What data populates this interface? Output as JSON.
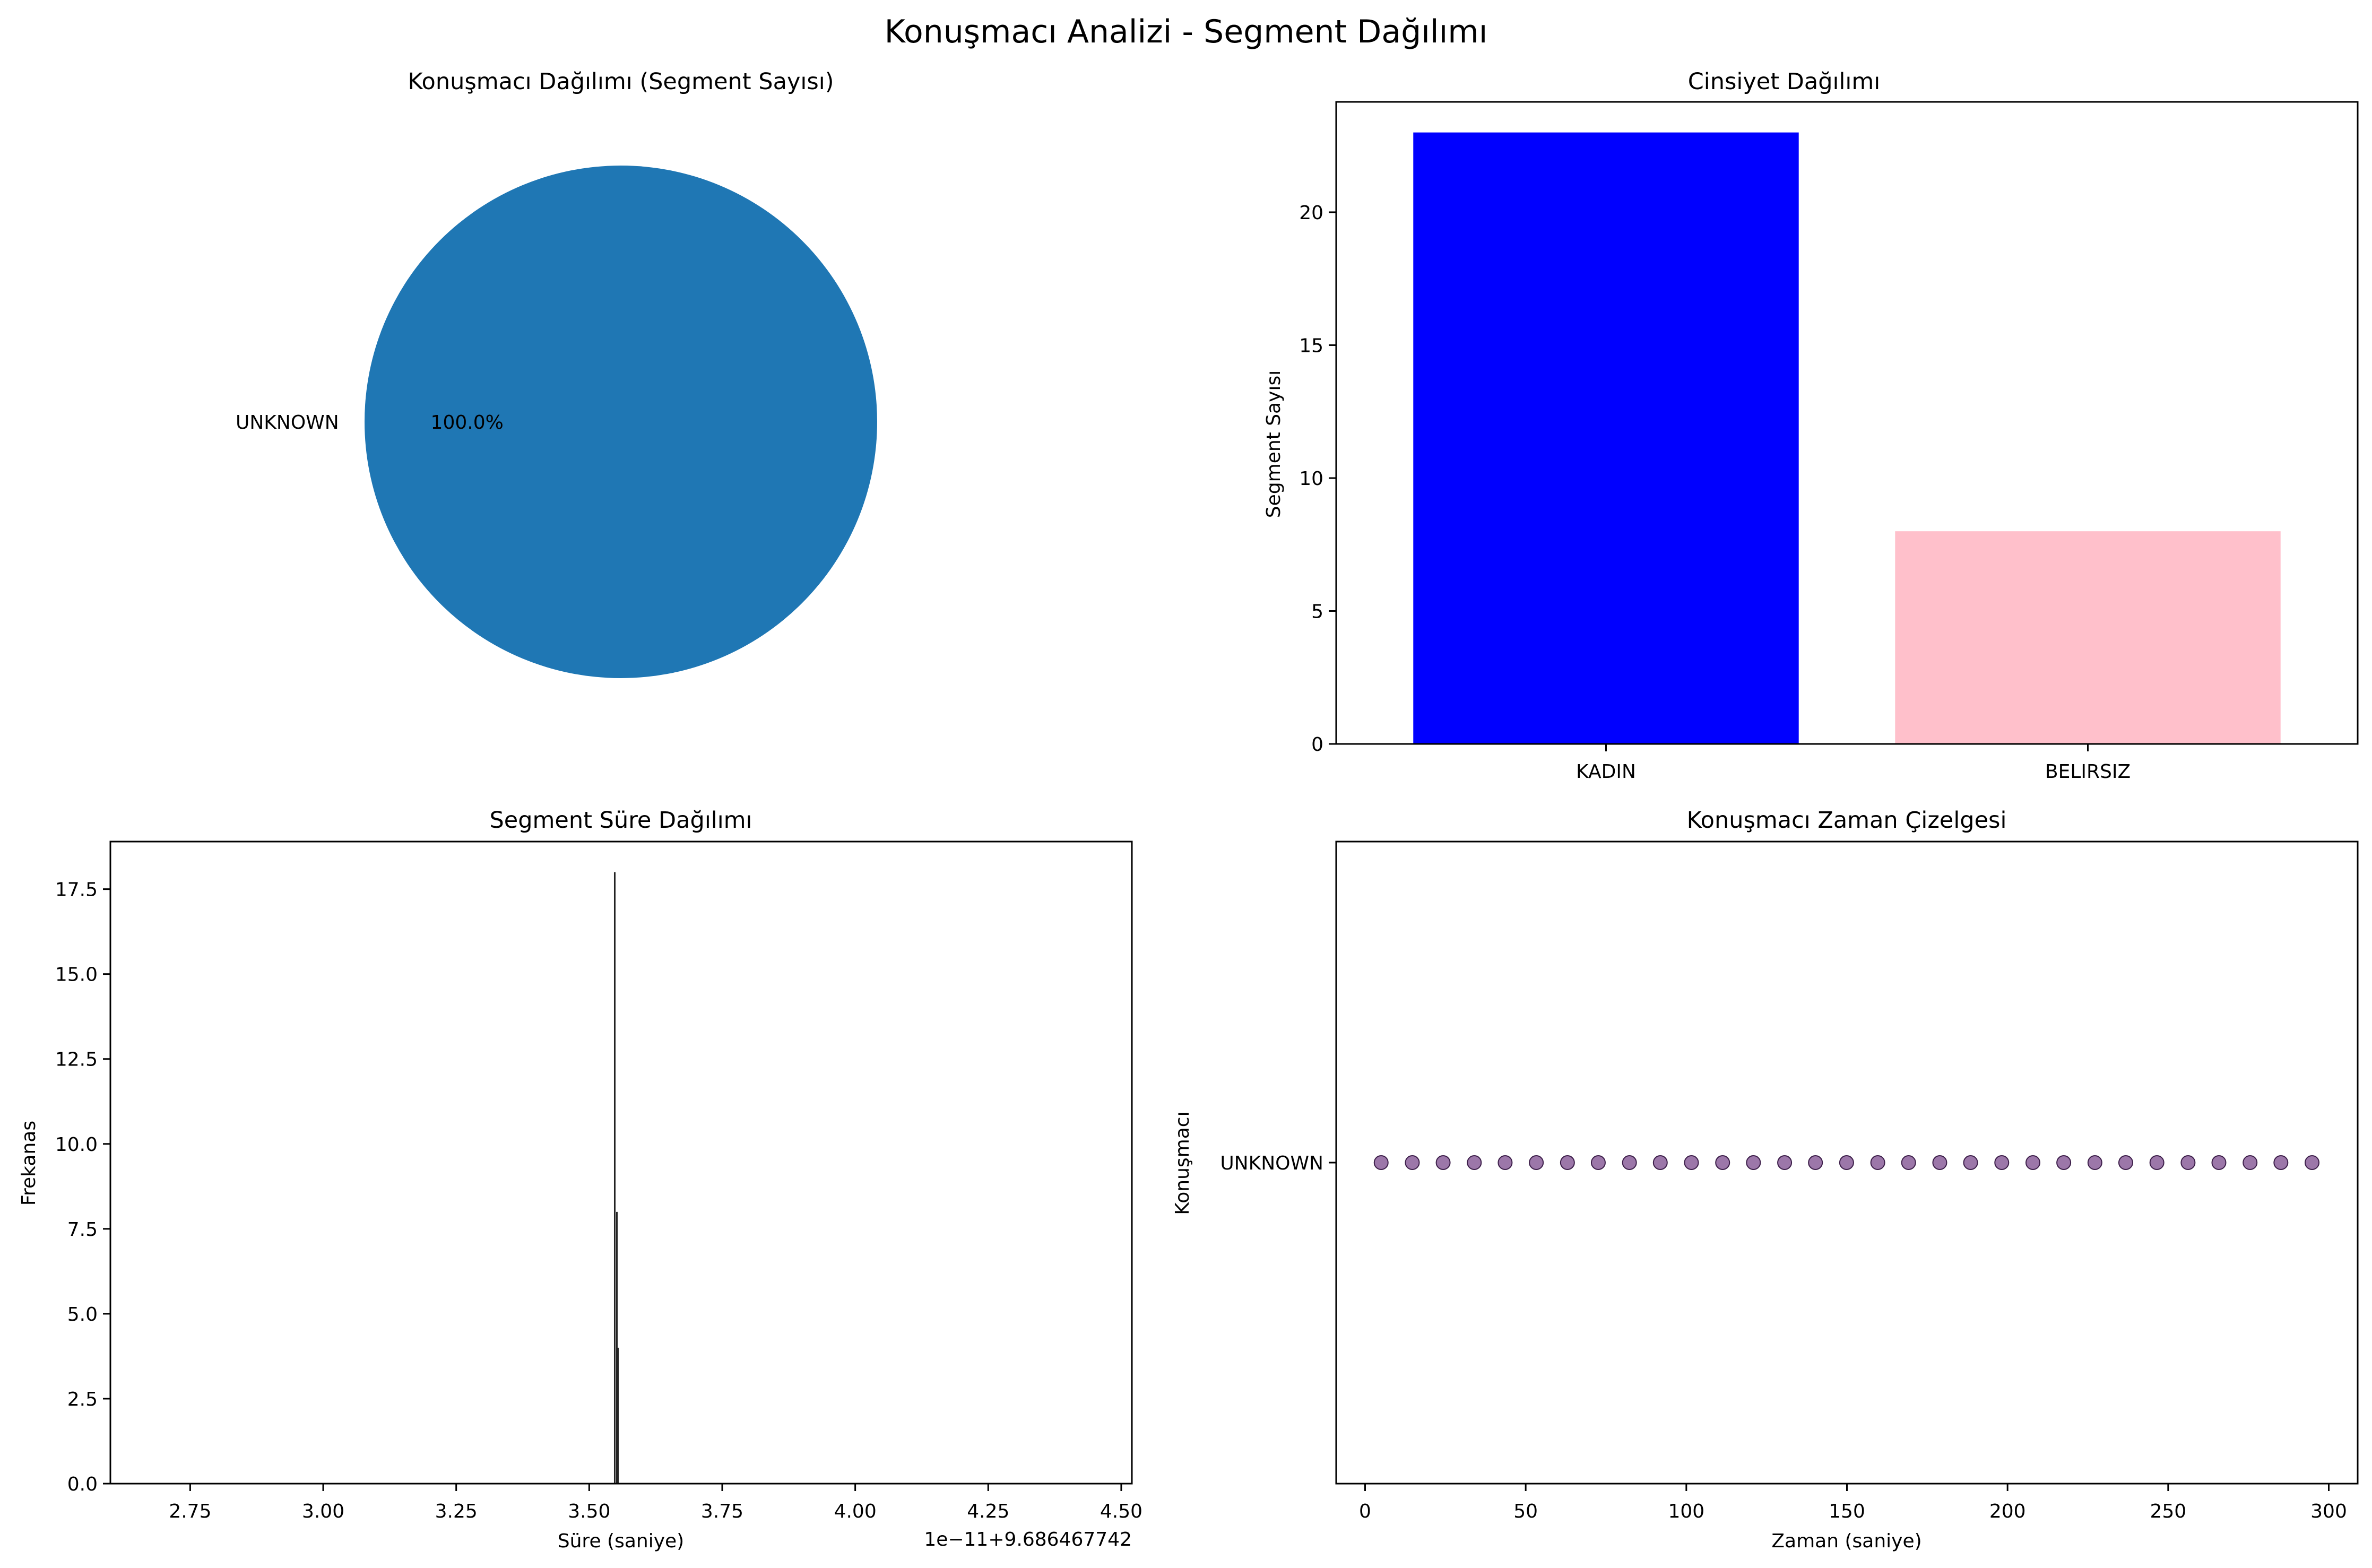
{
  "suptitle": "Konuşmacı Analizi - Segment Dağılımı",
  "chart_data": [
    {
      "type": "pie",
      "title": "Konuşmacı Dağılımı (Segment Sayısı)",
      "slices": [
        {
          "label": "UNKNOWN",
          "value": 100.0,
          "pct_label": "100.0%",
          "color": "#1f77b4"
        }
      ]
    },
    {
      "type": "bar",
      "title": "Cinsiyet Dağılımı",
      "xlabel": "",
      "ylabel": "Segment Sayısı",
      "categories": [
        "KADIN",
        "BELIRSIZ"
      ],
      "values": [
        23,
        8
      ],
      "colors": [
        "#0000ff",
        "#ffc0cb"
      ],
      "ylim": [
        0,
        24.15
      ],
      "yticks": [
        "0",
        "5",
        "10",
        "15",
        "20"
      ]
    },
    {
      "type": "bar",
      "title": "Segment Süre Dağılımı",
      "xlabel": "Süre (saniye)",
      "ylabel": "Frekanas",
      "offset_label": "1e−11+9.686467742",
      "xlim": [
        2.6,
        4.52
      ],
      "ylim": [
        0,
        18.9
      ],
      "xticks": [
        "2.75",
        "3.00",
        "3.25",
        "3.50",
        "3.75",
        "4.00",
        "4.25",
        "4.50"
      ],
      "yticks": [
        "0.0",
        "2.5",
        "5.0",
        "7.5",
        "10.0",
        "12.5",
        "15.0",
        "17.5"
      ],
      "bins": [
        {
          "x": 3.548,
          "count": 18
        },
        {
          "x": 3.552,
          "count": 8
        },
        {
          "x": 3.554,
          "count": 4
        }
      ]
    },
    {
      "type": "scatter",
      "title": "Konuşmacı Zaman Çizelgesi",
      "xlabel": "Zaman (saniye)",
      "ylabel": "Konuşmacı",
      "xlim": [
        -9,
        309
      ],
      "xticks": [
        "0",
        "50",
        "100",
        "150",
        "200",
        "250",
        "300"
      ],
      "yticks": [
        "UNKNOWN"
      ],
      "marker_color": "#7b4a8c",
      "points": [
        {
          "x": 5,
          "y": "UNKNOWN"
        },
        {
          "x": 14.7,
          "y": "UNKNOWN"
        },
        {
          "x": 24.3,
          "y": "UNKNOWN"
        },
        {
          "x": 34,
          "y": "UNKNOWN"
        },
        {
          "x": 43.6,
          "y": "UNKNOWN"
        },
        {
          "x": 53.3,
          "y": "UNKNOWN"
        },
        {
          "x": 63,
          "y": "UNKNOWN"
        },
        {
          "x": 72.6,
          "y": "UNKNOWN"
        },
        {
          "x": 82.3,
          "y": "UNKNOWN"
        },
        {
          "x": 91.9,
          "y": "UNKNOWN"
        },
        {
          "x": 101.6,
          "y": "UNKNOWN"
        },
        {
          "x": 111.3,
          "y": "UNKNOWN"
        },
        {
          "x": 120.9,
          "y": "UNKNOWN"
        },
        {
          "x": 130.6,
          "y": "UNKNOWN"
        },
        {
          "x": 140.2,
          "y": "UNKNOWN"
        },
        {
          "x": 149.9,
          "y": "UNKNOWN"
        },
        {
          "x": 159.6,
          "y": "UNKNOWN"
        },
        {
          "x": 169.2,
          "y": "UNKNOWN"
        },
        {
          "x": 178.9,
          "y": "UNKNOWN"
        },
        {
          "x": 188.5,
          "y": "UNKNOWN"
        },
        {
          "x": 198.2,
          "y": "UNKNOWN"
        },
        {
          "x": 207.9,
          "y": "UNKNOWN"
        },
        {
          "x": 217.5,
          "y": "UNKNOWN"
        },
        {
          "x": 227.2,
          "y": "UNKNOWN"
        },
        {
          "x": 236.8,
          "y": "UNKNOWN"
        },
        {
          "x": 246.5,
          "y": "UNKNOWN"
        },
        {
          "x": 256.2,
          "y": "UNKNOWN"
        },
        {
          "x": 265.8,
          "y": "UNKNOWN"
        },
        {
          "x": 275.5,
          "y": "UNKNOWN"
        },
        {
          "x": 285.1,
          "y": "UNKNOWN"
        },
        {
          "x": 294.8,
          "y": "UNKNOWN"
        }
      ]
    }
  ]
}
